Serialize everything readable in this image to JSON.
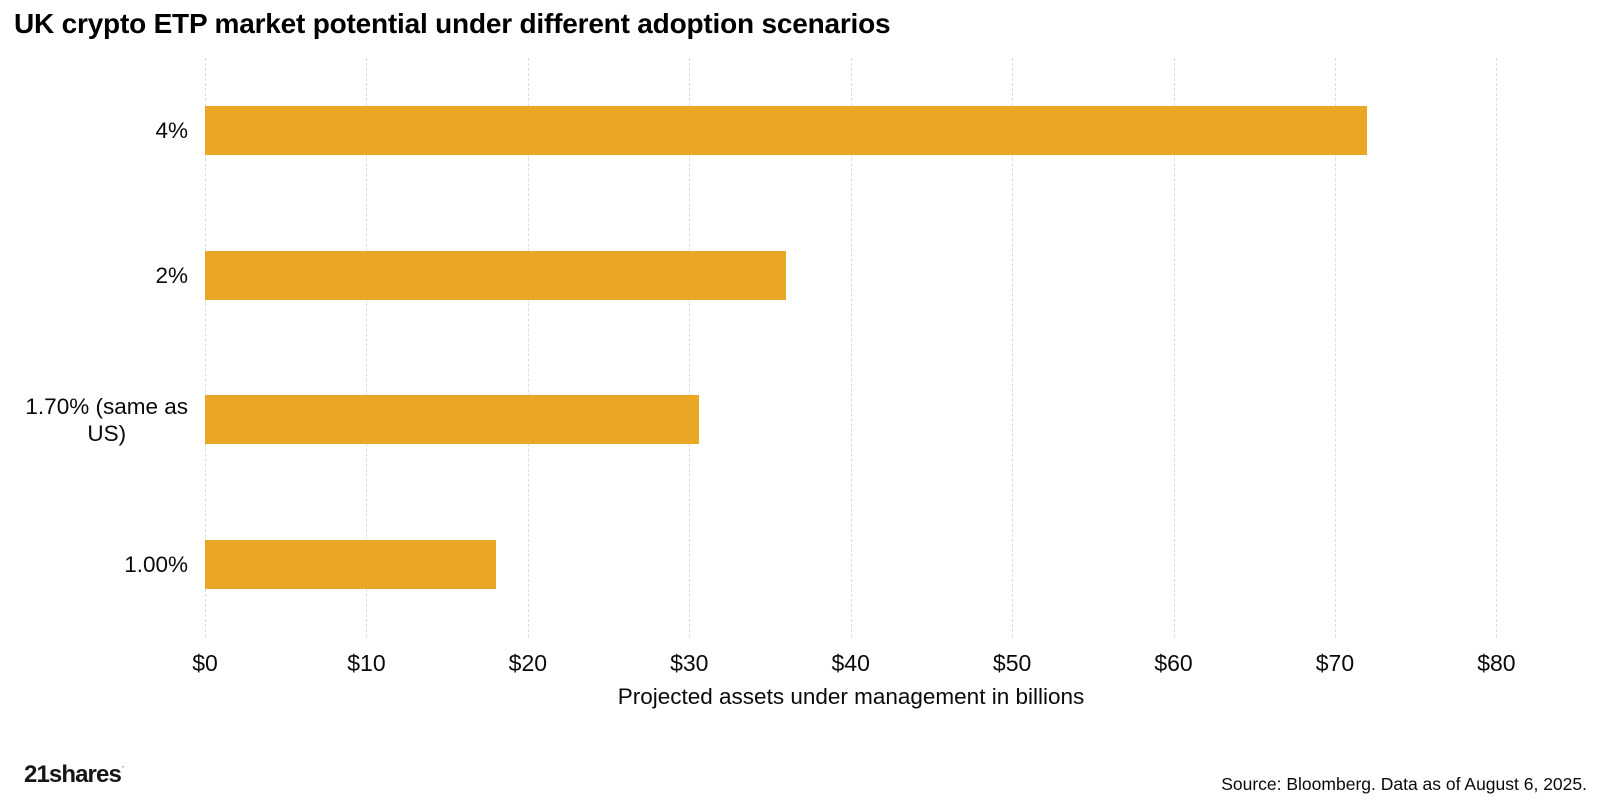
{
  "title": "UK crypto ETP market potential under different adoption scenarios",
  "chart_data": {
    "type": "bar",
    "orientation": "horizontal",
    "title": "UK crypto ETP market potential under different adoption scenarios",
    "categories": [
      "4%",
      "2%",
      "1.70% (same as\nUS)",
      "1.00%"
    ],
    "values": [
      72,
      36,
      30.6,
      18
    ],
    "xlabel": "Projected assets under management in billions",
    "ylabel": "",
    "x_ticks": [
      "$0",
      "$10",
      "$20",
      "$30",
      "$40",
      "$50",
      "$60",
      "$70",
      "$80"
    ],
    "x_tick_values": [
      0,
      10,
      20,
      30,
      40,
      50,
      60,
      70,
      80
    ],
    "xlim": [
      0,
      85.8
    ],
    "bar_color": "#EAA726",
    "gridline_color": "#dcdcdc",
    "grid": "vertical-dashed",
    "legend": "none",
    "background": "#ffffff"
  },
  "footer": {
    "logo_text": "21shares",
    "logo_mark": "·",
    "source": "Source: Bloomberg. Data as of August 6, 2025."
  }
}
